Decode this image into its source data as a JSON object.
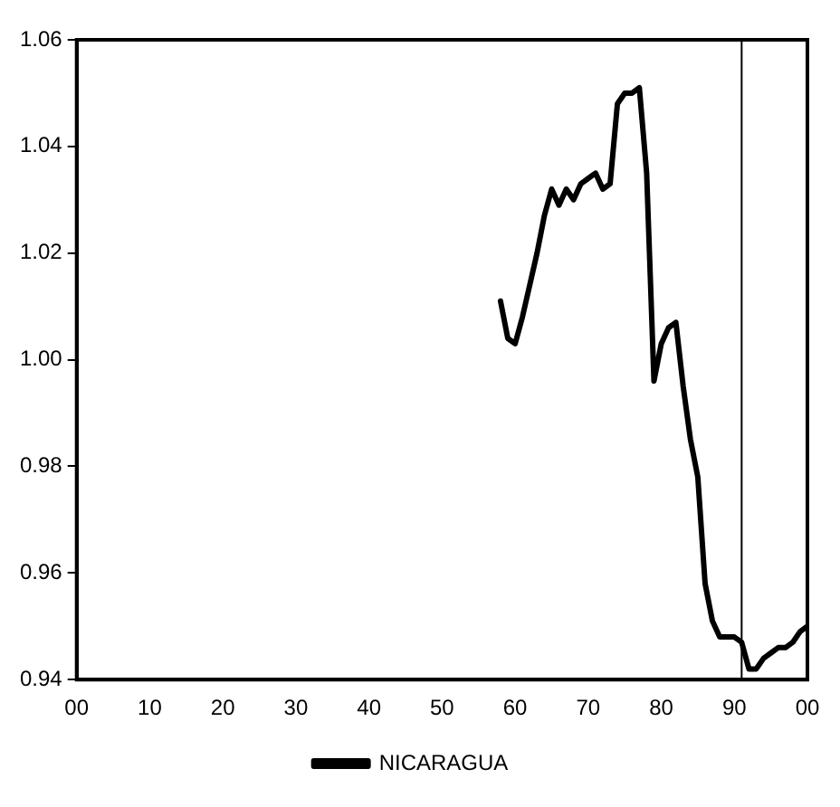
{
  "chart_data": {
    "type": "line",
    "x": [
      1958,
      1959,
      1960,
      1961,
      1962,
      1963,
      1964,
      1965,
      1966,
      1967,
      1968,
      1969,
      1970,
      1971,
      1972,
      1973,
      1974,
      1975,
      1976,
      1977,
      1978,
      1979,
      1980,
      1981,
      1982,
      1983,
      1984,
      1985,
      1986,
      1987,
      1988,
      1989,
      1990,
      1991,
      1992,
      1993,
      1994,
      1995,
      1996,
      1997,
      1998,
      1999,
      2000
    ],
    "series": [
      {
        "name": "NICARAGUA",
        "color": "#000000",
        "values": [
          1.011,
          1.004,
          1.003,
          1.008,
          1.014,
          1.02,
          1.027,
          1.032,
          1.029,
          1.032,
          1.03,
          1.033,
          1.034,
          1.035,
          1.032,
          1.033,
          1.048,
          1.05,
          1.05,
          1.051,
          1.035,
          0.996,
          1.003,
          1.006,
          1.007,
          0.995,
          0.985,
          0.978,
          0.958,
          0.951,
          0.948,
          0.948,
          0.948,
          0.947,
          0.942,
          0.942,
          0.944,
          0.945,
          0.946,
          0.946,
          0.947,
          0.949,
          0.95
        ]
      }
    ],
    "xlim": [
      1900,
      2000
    ],
    "xticks": [
      {
        "value": 1900,
        "label": "00"
      },
      {
        "value": 1910,
        "label": "10"
      },
      {
        "value": 1920,
        "label": "20"
      },
      {
        "value": 1930,
        "label": "30"
      },
      {
        "value": 1940,
        "label": "40"
      },
      {
        "value": 1950,
        "label": "50"
      },
      {
        "value": 1960,
        "label": "60"
      },
      {
        "value": 1970,
        "label": "70"
      },
      {
        "value": 1980,
        "label": "80"
      },
      {
        "value": 1990,
        "label": "90"
      },
      {
        "value": 2000,
        "label": "00"
      }
    ],
    "ylim": [
      0.94,
      1.06
    ],
    "yticks": [
      {
        "value": 0.94,
        "label": "0.94"
      },
      {
        "value": 0.96,
        "label": "0.96"
      },
      {
        "value": 0.98,
        "label": "0.98"
      },
      {
        "value": 1.0,
        "label": "1.00"
      },
      {
        "value": 1.02,
        "label": "1.02"
      },
      {
        "value": 1.04,
        "label": "1.04"
      },
      {
        "value": 1.06,
        "label": "1.06"
      }
    ],
    "ref_lines": [
      {
        "axis": "x",
        "value": 1991,
        "color": "#000000"
      }
    ],
    "grid": false,
    "legend": "bottom",
    "marker": "none",
    "line_style": "solid"
  }
}
